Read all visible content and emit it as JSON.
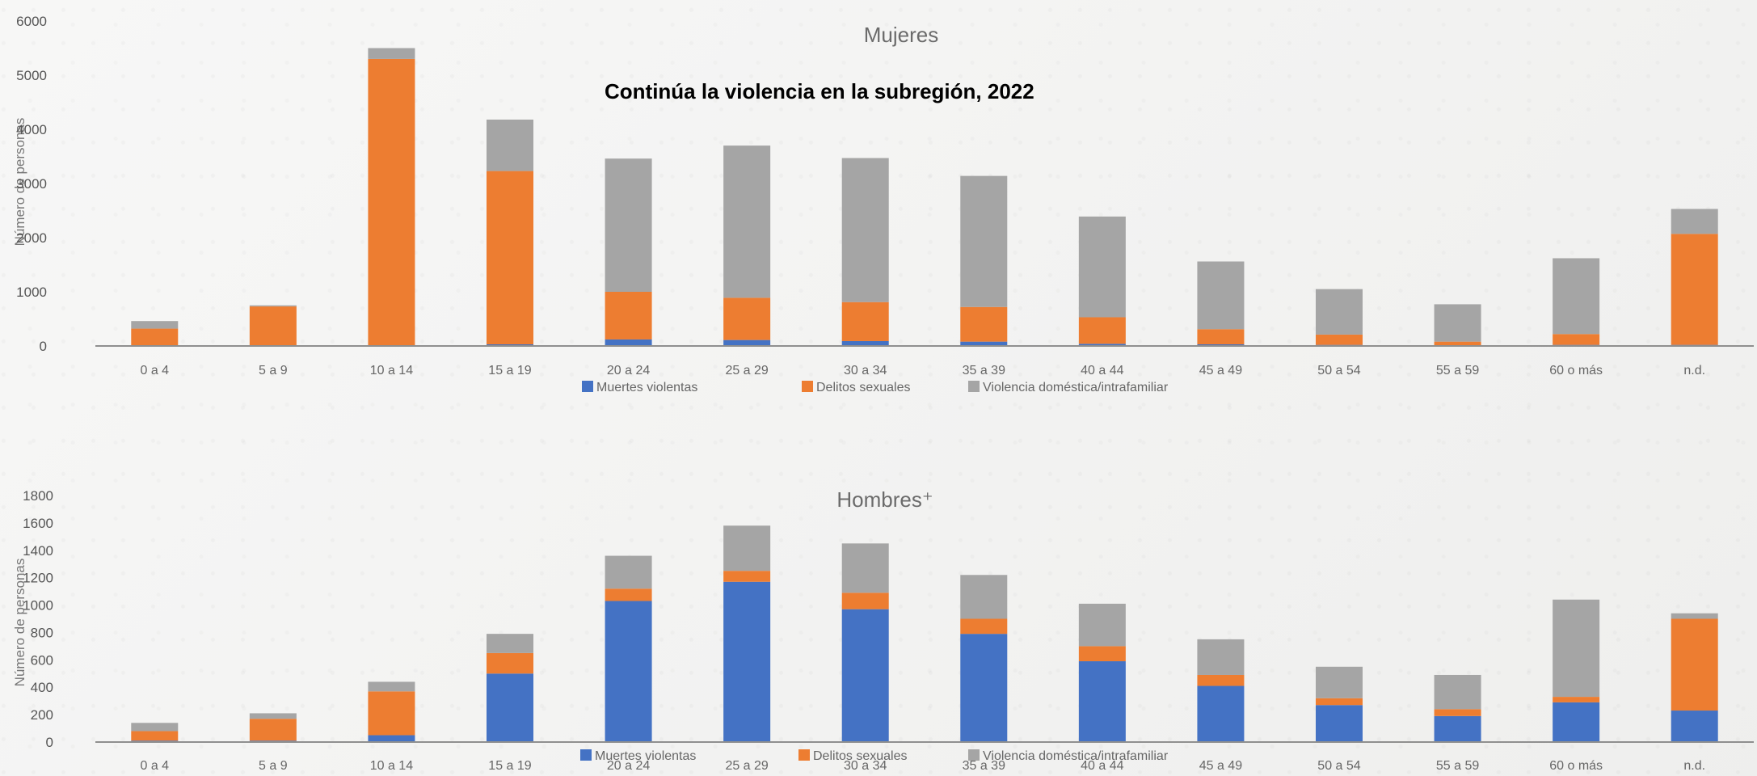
{
  "main_title": "Continúa  la violencia en la subregión, 2022",
  "colors": {
    "muertes": "#4472c4",
    "delitos": "#ed7d31",
    "violencia": "#a5a5a5",
    "axis": "#8f8f8f"
  },
  "chart_data": [
    {
      "type": "bar",
      "stacked": true,
      "title": "Mujeres",
      "ylabel": "Número de personas",
      "ylim": [
        0,
        6000
      ],
      "yticks": [
        0,
        1000,
        2000,
        3000,
        4000,
        5000,
        6000
      ],
      "categories": [
        "0 a 4",
        "5 a 9",
        "10 a 14",
        "15 a 19",
        "20 a 24",
        "25 a 29",
        "30 a 34",
        "35 a 39",
        "40 a 44",
        "45 a 49",
        "50 a 54",
        "55 a 59",
        "60 o más",
        "n.d."
      ],
      "series": [
        {
          "name": "Muertes violentas",
          "color_key": "muertes",
          "values": [
            0,
            0,
            0,
            30,
            120,
            110,
            90,
            80,
            40,
            30,
            20,
            10,
            20,
            20
          ]
        },
        {
          "name": "Delitos sexuales",
          "color_key": "delitos",
          "values": [
            320,
            730,
            5300,
            3200,
            880,
            780,
            720,
            640,
            490,
            280,
            190,
            70,
            200,
            2050
          ]
        },
        {
          "name": "Violencia doméstica/intrafamiliar",
          "color_key": "violencia",
          "values": [
            140,
            20,
            200,
            950,
            2460,
            2810,
            2660,
            2420,
            1860,
            1250,
            840,
            690,
            1400,
            460
          ]
        }
      ],
      "legend_position": "bottom"
    },
    {
      "type": "bar",
      "stacked": true,
      "title": "Hombres⁺",
      "ylabel": "Número de personas",
      "ylim": [
        0,
        1800
      ],
      "yticks": [
        0,
        200,
        400,
        600,
        800,
        1000,
        1200,
        1400,
        1600,
        1800
      ],
      "categories": [
        "0 a 4",
        "5 a 9",
        "10 a 14",
        "15 a 19",
        "20 a 24",
        "25 a 29",
        "30 a 34",
        "35 a 39",
        "40 a 44",
        "45 a 49",
        "50 a 54",
        "55 a 59",
        "60 o más",
        "n.d."
      ],
      "series": [
        {
          "name": "Muertes violentas",
          "color_key": "muertes",
          "values": [
            10,
            10,
            50,
            500,
            1030,
            1170,
            970,
            790,
            590,
            410,
            270,
            190,
            290,
            230
          ]
        },
        {
          "name": "Delitos sexuales",
          "color_key": "delitos",
          "values": [
            70,
            160,
            320,
            150,
            90,
            80,
            120,
            110,
            110,
            80,
            50,
            50,
            40,
            670
          ]
        },
        {
          "name": "Violencia doméstica/intrafamiliar",
          "color_key": "violencia",
          "values": [
            60,
            40,
            70,
            140,
            240,
            330,
            360,
            320,
            310,
            260,
            230,
            250,
            710,
            40
          ]
        }
      ],
      "legend_position": "bottom"
    }
  ]
}
